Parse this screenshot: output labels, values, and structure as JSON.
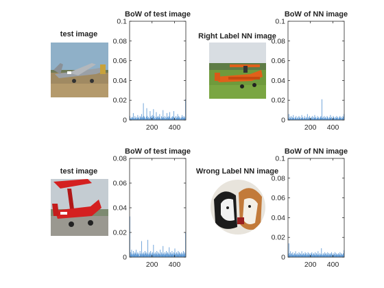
{
  "panels": {
    "row1": {
      "test_title": "test image",
      "nn_title": "Right Label NN image",
      "test_photo": "vintage-silver-military-airplane-photo",
      "nn_photo": "orange-biplane-on-grass-photo"
    },
    "row2": {
      "test_title": "test image",
      "nn_title": "Wrong Label NN image",
      "test_photo": "red-biplane-photo",
      "nn_photo": "black-and-white-dog-photo"
    }
  },
  "chart_data": [
    {
      "type": "bar",
      "title": "BoW of test image",
      "x": {
        "min": 1,
        "max": 500,
        "ticks": [
          200,
          400
        ]
      },
      "ylim": [
        0,
        0.1
      ],
      "yticks": [
        0,
        0.02,
        0.04,
        0.06,
        0.08,
        0.1
      ],
      "ytick_labels": [
        "0",
        "0.02",
        "0.04",
        "0.06",
        "0.08",
        "0.1"
      ],
      "color": "#4f8fd0",
      "values": [
        0.004,
        0.002,
        0.001,
        0.003,
        0.002,
        0.003,
        0.007,
        0.002,
        0.001,
        0.004,
        0.002,
        0.003,
        0.001,
        0.002,
        0.005,
        0.003,
        0.002,
        0.001,
        0.004,
        0.003,
        0.002,
        0.006,
        0.003,
        0.002,
        0.017,
        0.004,
        0.003,
        0.002,
        0.001,
        0.003,
        0.012,
        0.004,
        0.002,
        0.003,
        0.001,
        0.002,
        0.009,
        0.003,
        0.004,
        0.002,
        0.005,
        0.003,
        0.011,
        0.004,
        0.002,
        0.001,
        0.003,
        0.008,
        0.002,
        0.003,
        0.004,
        0.002,
        0.003,
        0.006,
        0.002,
        0.001,
        0.004,
        0.003,
        0.002,
        0.01,
        0.003,
        0.002,
        0.004,
        0.001,
        0.003,
        0.002,
        0.007,
        0.003,
        0.002,
        0.004,
        0.003,
        0.008,
        0.002,
        0.001,
        0.003,
        0.002,
        0.004,
        0.003,
        0.009,
        0.002,
        0.003,
        0.001,
        0.004,
        0.002,
        0.003,
        0.006,
        0.002,
        0.004,
        0.003,
        0.002,
        0.001,
        0.003,
        0.002,
        0.005,
        0.003,
        0.002,
        0.004,
        0.003,
        0.002,
        0.021
      ]
    },
    {
      "type": "bar",
      "title": "BoW of NN image",
      "x": {
        "min": 1,
        "max": 500,
        "ticks": [
          200,
          400
        ]
      },
      "ylim": [
        0,
        0.1
      ],
      "yticks": [
        0,
        0.02,
        0.04,
        0.06,
        0.08,
        0.1
      ],
      "ytick_labels": [
        "0",
        "0.02",
        "0.04",
        "0.06",
        "0.08",
        "0.1"
      ],
      "color": "#4f8fd0",
      "values": [
        0.002,
        0.006,
        0.001,
        0.003,
        0.002,
        0.004,
        0.001,
        0.003,
        0.002,
        0.005,
        0.002,
        0.001,
        0.003,
        0.002,
        0.004,
        0.001,
        0.002,
        0.003,
        0.001,
        0.004,
        0.002,
        0.003,
        0.001,
        0.002,
        0.005,
        0.002,
        0.003,
        0.001,
        0.002,
        0.004,
        0.002,
        0.001,
        0.003,
        0.002,
        0.006,
        0.001,
        0.003,
        0.002,
        0.004,
        0.002,
        0.001,
        0.003,
        0.002,
        0.004,
        0.001,
        0.003,
        0.002,
        0.005,
        0.002,
        0.003,
        0.001,
        0.002,
        0.004,
        0.002,
        0.003,
        0.001,
        0.002,
        0.003,
        0.004,
        0.002,
        0.021,
        0.002,
        0.003,
        0.001,
        0.004,
        0.002,
        0.003,
        0.002,
        0.001,
        0.004,
        0.003,
        0.002,
        0.001,
        0.003,
        0.002,
        0.005,
        0.002,
        0.003,
        0.001,
        0.002,
        0.004,
        0.003,
        0.002,
        0.001,
        0.003,
        0.002,
        0.004,
        0.002,
        0.003,
        0.001,
        0.002,
        0.003,
        0.004,
        0.002,
        0.003,
        0.001,
        0.002,
        0.004,
        0.003,
        0.006
      ]
    },
    {
      "type": "bar",
      "title": "BoW of test image",
      "x": {
        "min": 1,
        "max": 500,
        "ticks": [
          200,
          400
        ]
      },
      "ylim": [
        0,
        0.08
      ],
      "yticks": [
        0,
        0.02,
        0.04,
        0.06,
        0.08
      ],
      "ytick_labels": [
        "0",
        "0.02",
        "0.04",
        "0.06",
        "0.08"
      ],
      "color": "#4f8fd0",
      "values": [
        0.033,
        0.004,
        0.002,
        0.006,
        0.003,
        0.002,
        0.005,
        0.003,
        0.002,
        0.004,
        0.003,
        0.006,
        0.002,
        0.003,
        0.004,
        0.002,
        0.003,
        0.001,
        0.005,
        0.003,
        0.002,
        0.013,
        0.003,
        0.002,
        0.004,
        0.003,
        0.002,
        0.005,
        0.003,
        0.004,
        0.002,
        0.003,
        0.014,
        0.002,
        0.003,
        0.004,
        0.002,
        0.005,
        0.003,
        0.002,
        0.004,
        0.003,
        0.01,
        0.002,
        0.003,
        0.004,
        0.002,
        0.003,
        0.005,
        0.002,
        0.004,
        0.003,
        0.002,
        0.003,
        0.006,
        0.002,
        0.004,
        0.003,
        0.002,
        0.009,
        0.003,
        0.002,
        0.004,
        0.003,
        0.002,
        0.005,
        0.003,
        0.004,
        0.002,
        0.003,
        0.008,
        0.002,
        0.004,
        0.003,
        0.002,
        0.005,
        0.003,
        0.002,
        0.004,
        0.003,
        0.007,
        0.002,
        0.003,
        0.004,
        0.002,
        0.003,
        0.005,
        0.002,
        0.004,
        0.003,
        0.002,
        0.003,
        0.004,
        0.002,
        0.003,
        0.005,
        0.002,
        0.004,
        0.003,
        0.02
      ]
    },
    {
      "type": "bar",
      "title": "BoW of NN image",
      "x": {
        "min": 1,
        "max": 500,
        "ticks": [
          200,
          400
        ]
      },
      "ylim": [
        0,
        0.1
      ],
      "yticks": [
        0,
        0.02,
        0.04,
        0.06,
        0.08,
        0.1
      ],
      "ytick_labels": [
        "0",
        "0.02",
        "0.04",
        "0.06",
        "0.08",
        "0.1"
      ],
      "color": "#4f8fd0",
      "values": [
        0.003,
        0.014,
        0.004,
        0.002,
        0.006,
        0.003,
        0.004,
        0.002,
        0.005,
        0.003,
        0.002,
        0.004,
        0.003,
        0.006,
        0.002,
        0.003,
        0.004,
        0.002,
        0.003,
        0.005,
        0.002,
        0.004,
        0.003,
        0.002,
        0.006,
        0.003,
        0.002,
        0.004,
        0.003,
        0.002,
        0.005,
        0.003,
        0.004,
        0.002,
        0.003,
        0.005,
        0.002,
        0.004,
        0.003,
        0.002,
        0.004,
        0.003,
        0.005,
        0.002,
        0.003,
        0.004,
        0.002,
        0.003,
        0.005,
        0.002,
        0.004,
        0.003,
        0.002,
        0.006,
        0.003,
        0.002,
        0.004,
        0.003,
        0.002,
        0.009,
        0.003,
        0.002,
        0.004,
        0.003,
        0.002,
        0.005,
        0.003,
        0.004,
        0.002,
        0.003,
        0.005,
        0.002,
        0.004,
        0.003,
        0.002,
        0.004,
        0.003,
        0.005,
        0.002,
        0.003,
        0.004,
        0.002,
        0.003,
        0.005,
        0.002,
        0.004,
        0.003,
        0.002,
        0.003,
        0.004,
        0.002,
        0.003,
        0.005,
        0.002,
        0.004,
        0.003,
        0.002,
        0.003,
        0.004,
        0.007
      ]
    }
  ]
}
